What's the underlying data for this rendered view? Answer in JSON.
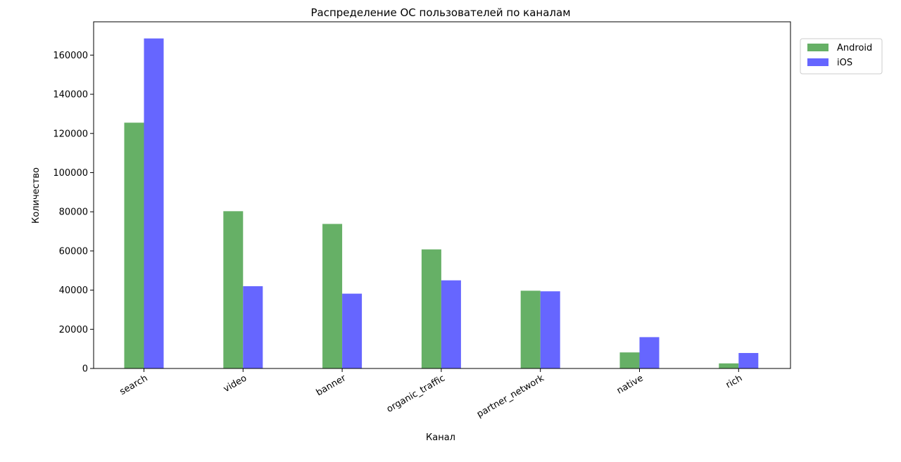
{
  "chart_data": {
    "type": "bar",
    "title": "Распределение ОС пользователей по каналам",
    "xlabel": "Канал",
    "ylabel": "Количество",
    "categories": [
      "search",
      "video",
      "banner",
      "organic_traffic",
      "partner_network",
      "native",
      "rich"
    ],
    "series": [
      {
        "name": "Android",
        "color": "#66b066",
        "values": [
          125500,
          80300,
          73800,
          60800,
          39700,
          8200,
          2600
        ]
      },
      {
        "name": "iOS",
        "color": "#6666ff",
        "values": [
          168500,
          42000,
          38200,
          45000,
          39400,
          16000,
          7900
        ]
      }
    ],
    "yticks": [
      "0",
      "20000",
      "40000",
      "60000",
      "80000",
      "100000",
      "120000",
      "140000",
      "160000"
    ],
    "ylim": [
      0,
      177000
    ],
    "grid": false,
    "legend_position": "outside-top-right"
  }
}
